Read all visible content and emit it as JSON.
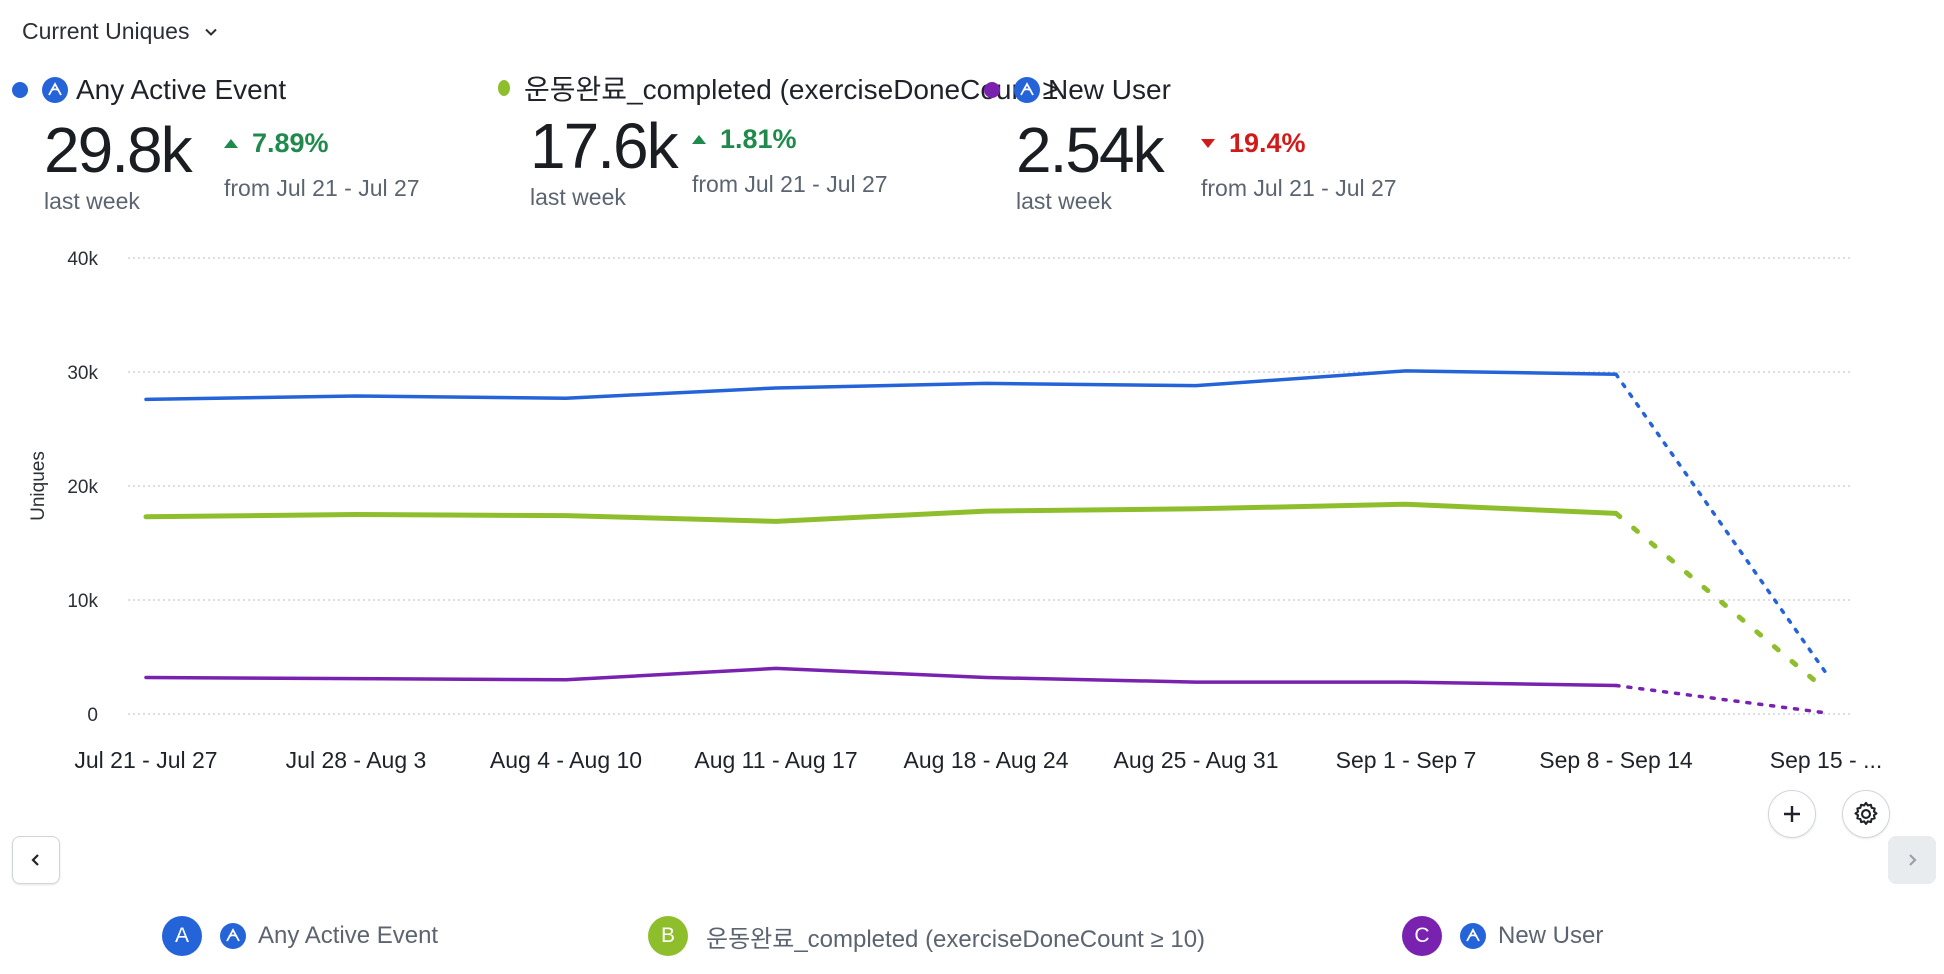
{
  "metric_selector": {
    "label": "Current Uniques"
  },
  "colors": {
    "blue": "#2563d9",
    "green": "#8fbe2d",
    "purple": "#7a22b0",
    "up": "#1f8a4c",
    "down": "#d11a1a"
  },
  "kpis": [
    {
      "name": "Any Active Event",
      "value": "29.8k",
      "period": "last week",
      "delta": "7.89%",
      "direction": "up",
      "from": "from Jul 21 - Jul 27"
    },
    {
      "name": "운동완료_completed (exerciseDoneCount ≥",
      "value": "17.6k",
      "period": "last week",
      "delta": "1.81%",
      "direction": "up",
      "from": "from Jul 21 - Jul 27"
    },
    {
      "name": "New User",
      "value": "2.54k",
      "period": "last week",
      "delta": "19.4%",
      "direction": "down",
      "from": "from Jul 21 - Jul 27"
    }
  ],
  "chart_data": {
    "type": "line",
    "title": "",
    "xlabel": "",
    "ylabel": "Uniques",
    "ylim": [
      0,
      40000
    ],
    "yticks": [
      0,
      10000,
      20000,
      30000,
      40000
    ],
    "ytick_labels": [
      "0",
      "10k",
      "20k",
      "30k",
      "40k"
    ],
    "grid": true,
    "categories": [
      "Jul 21 - Jul 27",
      "Jul 28 - Aug 3",
      "Aug 4 - Aug 10",
      "Aug 11 - Aug 17",
      "Aug 18 - Aug 24",
      "Aug 25 - Aug 31",
      "Sep 1 - Sep 7",
      "Sep 8 - Sep 14",
      "Sep 15 - ..."
    ],
    "incomplete_from_index": 7,
    "series": [
      {
        "name": "Any Active Event",
        "color": "#2563d9",
        "values": [
          27600,
          27900,
          27700,
          28600,
          29000,
          28800,
          30100,
          29800,
          3600
        ]
      },
      {
        "name": "운동완료_completed (exerciseDoneCount ≥ 10)",
        "color": "#8fbe2d",
        "values": [
          17300,
          17500,
          17400,
          16900,
          17800,
          18000,
          18400,
          17600,
          2100
        ]
      },
      {
        "name": "New User",
        "color": "#7a22b0",
        "values": [
          3200,
          3100,
          3000,
          4000,
          3200,
          2800,
          2800,
          2500,
          100
        ]
      }
    ]
  },
  "legend": [
    {
      "letter": "A",
      "name": "Any Active Event"
    },
    {
      "letter": "B",
      "name": "운동완료_completed (exerciseDoneCount ≥ 10)"
    },
    {
      "letter": "C",
      "name": "New User"
    }
  ]
}
